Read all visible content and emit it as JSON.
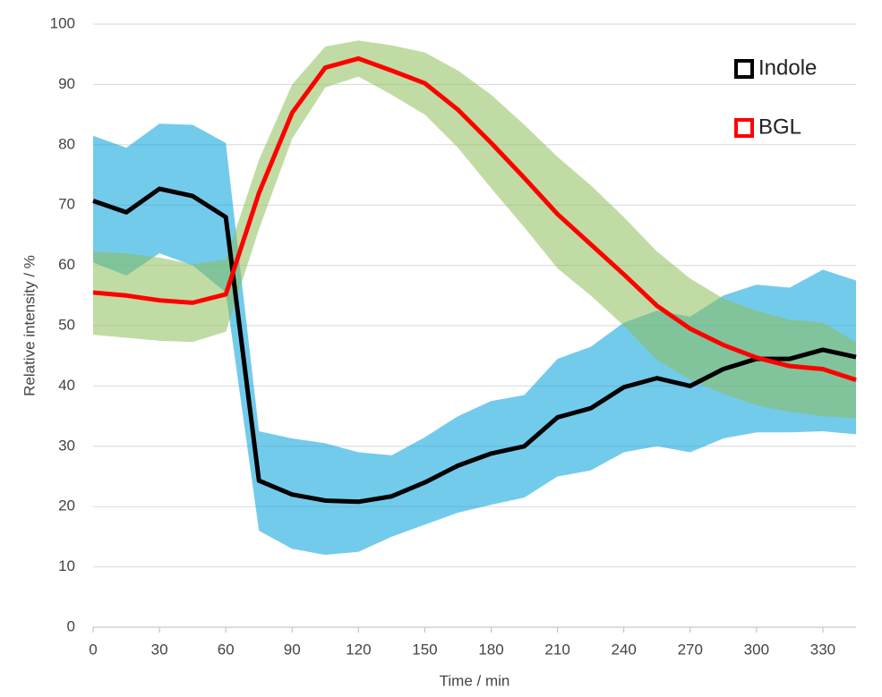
{
  "chart_data": {
    "type": "line_band",
    "x_label": "Time / min",
    "y_label": "Relative intensity / %",
    "x": [
      0,
      15,
      30,
      45,
      60,
      75,
      90,
      105,
      120,
      135,
      150,
      165,
      180,
      195,
      210,
      225,
      240,
      255,
      270,
      285,
      300,
      315,
      330,
      345
    ],
    "series": [
      {
        "name": "Indole",
        "color": "#000000",
        "band_color": "#00a0dc",
        "values": [
          70.7,
          68.8,
          72.7,
          71.5,
          68,
          24.3,
          22,
          21,
          20.8,
          21.7,
          24,
          26.8,
          28.8,
          30,
          34.8,
          36.3,
          39.8,
          41.3,
          40,
          42.8,
          44.5,
          44.5,
          46,
          44.8
        ],
        "upper": [
          81.5,
          79.5,
          83.5,
          83.3,
          80.3,
          32.5,
          31.3,
          30.5,
          29,
          28.5,
          31.5,
          35,
          37.5,
          38.5,
          44.5,
          46.5,
          50.5,
          52.5,
          51.5,
          55,
          56.8,
          56.3,
          59.3,
          57.5
        ],
        "lower": [
          60.5,
          58.3,
          62,
          60,
          55.5,
          16,
          13,
          12,
          12.5,
          15,
          17,
          19,
          20.3,
          21.5,
          25,
          26,
          29,
          30,
          29,
          31.3,
          32.3,
          32.3,
          32.5,
          32
        ]
      },
      {
        "name": "BGL",
        "color": "#ff0000",
        "band_color": "#8cbf5a",
        "values": [
          55.5,
          55,
          54.2,
          53.8,
          55.2,
          72,
          85.3,
          92.8,
          94.3,
          92.3,
          90.2,
          85.8,
          80.3,
          74.5,
          68.5,
          63.5,
          58.5,
          53.3,
          49.5,
          46.8,
          44.7,
          43.3,
          42.8,
          41
        ],
        "upper": [
          62.3,
          62,
          61.3,
          60.2,
          61,
          77.5,
          90,
          96.3,
          97.3,
          96.5,
          95.3,
          92.3,
          88.3,
          83.3,
          78,
          73.3,
          68,
          62.3,
          57.8,
          54.5,
          52.5,
          51,
          50.5,
          47.3
        ],
        "lower": [
          48.5,
          48,
          47.5,
          47.3,
          49,
          66,
          81,
          89.5,
          91.3,
          88.3,
          85,
          79.5,
          72.8,
          66.3,
          59.5,
          55,
          50,
          44.3,
          41,
          38.7,
          36.8,
          35.7,
          35,
          34.6
        ]
      }
    ],
    "xlim": [
      0,
      345
    ],
    "ylim": [
      0,
      100
    ],
    "xticks": [
      0,
      30,
      60,
      90,
      120,
      150,
      180,
      210,
      240,
      270,
      300,
      330
    ],
    "yticks": [
      0,
      10,
      20,
      30,
      40,
      50,
      60,
      70,
      80,
      90,
      100
    ],
    "grid": true,
    "legend": "upper right"
  }
}
